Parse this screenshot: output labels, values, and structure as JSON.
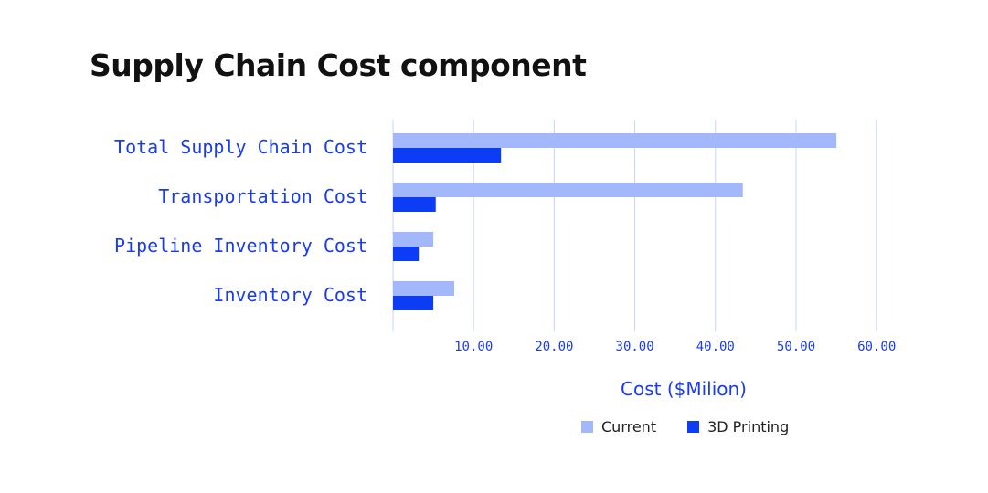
{
  "chart_data": {
    "type": "bar",
    "orientation": "horizontal",
    "title": "Supply Chain Cost component",
    "xlabel": "Cost ($Milion)",
    "ylabel": "",
    "categories": [
      "Total Supply Chain Cost",
      "Transportation Cost",
      "Pipeline Inventory Cost",
      "Inventory Cost"
    ],
    "series": [
      {
        "name": "Current",
        "color": "#a3b8fb",
        "values": [
          55,
          43.4,
          5,
          7.6
        ]
      },
      {
        "name": "3D Printing",
        "color": "#0d3cf5",
        "values": [
          13.4,
          5.3,
          3.2,
          5
        ]
      }
    ],
    "xlim": [
      0,
      60
    ],
    "xticks": [
      "10.00",
      "20.00",
      "30.00",
      "40.00",
      "50.00",
      "60.00"
    ],
    "xtick_values": [
      10,
      20,
      30,
      40,
      50,
      60
    ],
    "grid": "vertical",
    "legend_position": "bottom",
    "label_color": "#1a3cf0",
    "grid_color": "#c9d4fb"
  }
}
